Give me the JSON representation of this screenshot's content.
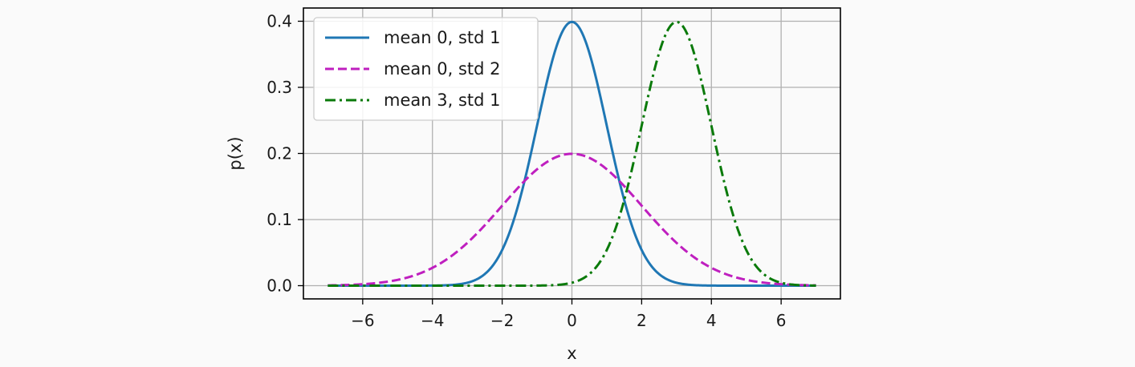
{
  "chart_data": {
    "type": "line",
    "xlabel": "x",
    "ylabel": "p(x)",
    "xlim": [
      -7.7,
      7.7
    ],
    "ylim": [
      -0.02,
      0.42
    ],
    "xticks": [
      -6,
      -4,
      -2,
      0,
      2,
      4,
      6
    ],
    "xtick_labels": [
      "−6",
      "−4",
      "−2",
      "0",
      "2",
      "4",
      "6"
    ],
    "yticks": [
      0.0,
      0.1,
      0.2,
      0.3,
      0.4
    ],
    "ytick_labels": [
      "0.0",
      "0.1",
      "0.2",
      "0.3",
      "0.4"
    ],
    "grid": true,
    "legend_position": "top-left",
    "x_range": [
      -7,
      7
    ],
    "series": [
      {
        "name": "mean 0, std 1",
        "mean": 0,
        "std": 1,
        "color": "#1f77b4",
        "style": "solid"
      },
      {
        "name": "mean 0, std 2",
        "mean": 0,
        "std": 2,
        "color": "#bf1fbf",
        "style": "dashed"
      },
      {
        "name": "mean 3, std 1",
        "mean": 3,
        "std": 1,
        "color": "#0a7a0a",
        "style": "dashdot"
      }
    ]
  }
}
